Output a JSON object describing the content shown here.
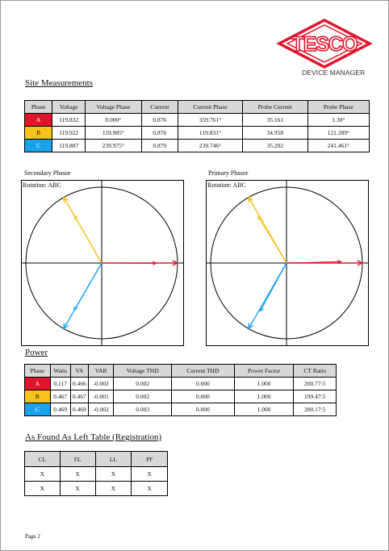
{
  "brand": {
    "logo_text": "TESCO",
    "subtitle": "DEVICE MANAGER",
    "colors": {
      "red": "#e0152b"
    }
  },
  "site_measurements": {
    "title": "Site Measurements",
    "headers": [
      "Phase",
      "Voltage",
      "Voltage Phase",
      "Current",
      "Current Phase",
      "Probe Current",
      "Probe Phase"
    ],
    "rows": [
      [
        "A",
        "119.832",
        "0.000°",
        "0.876",
        "359.761°",
        "35.161",
        "1.30°"
      ],
      [
        "B",
        "119.922",
        "119.985°",
        "0.876",
        "119.831°",
        "34.958",
        "121.289°"
      ],
      [
        "C",
        "119.887",
        "239.975°",
        "0.879",
        "239.746°",
        "35.202",
        "241.461°"
      ]
    ],
    "phase_colors": {
      "A": "#e0152b",
      "B": "#f7c21b",
      "C": "#1aa3ec"
    }
  },
  "secondary_phasor": {
    "title": "Secondary Phasor",
    "rotation": "Rotation: ABC",
    "voltage_angles_deg": [
      0.0,
      119.985,
      239.975
    ],
    "current_angles_deg": [
      359.761,
      119.831,
      239.746
    ]
  },
  "primary_phasor": {
    "title": "Primary Phasor",
    "rotation": "Rotation: ABC",
    "voltage_angles_deg": [
      0.0,
      119.985,
      239.975
    ],
    "current_angles_deg": [
      1.3,
      121.289,
      241.461
    ]
  },
  "power": {
    "title": "Power",
    "headers": [
      "Phase",
      "Watts",
      "VA",
      "VAR",
      "Voltage THD",
      "Current THD",
      "Power Factor",
      "CT Ratio"
    ],
    "rows": [
      [
        "A",
        "0.117",
        "0.466",
        "-0.002",
        "0.002",
        "0.000",
        "1.000",
        "200.77:5"
      ],
      [
        "B",
        "0.467",
        "0.467",
        "-0.001",
        "0.002",
        "0.000",
        "1.000",
        "199.47:5"
      ],
      [
        "C",
        "0.469",
        "0.469",
        "-0.002",
        "0.003",
        "0.000",
        "1.000",
        "200.17:5"
      ]
    ]
  },
  "as_found": {
    "title": "As Found As Left Table (Registration)",
    "headers": [
      "CL",
      "FL",
      "LL",
      "PF"
    ],
    "rows": [
      [
        "X",
        "X",
        "X",
        "X"
      ],
      [
        "X",
        "X",
        "X",
        "X"
      ]
    ]
  },
  "footer": {
    "page": "Page 2"
  }
}
